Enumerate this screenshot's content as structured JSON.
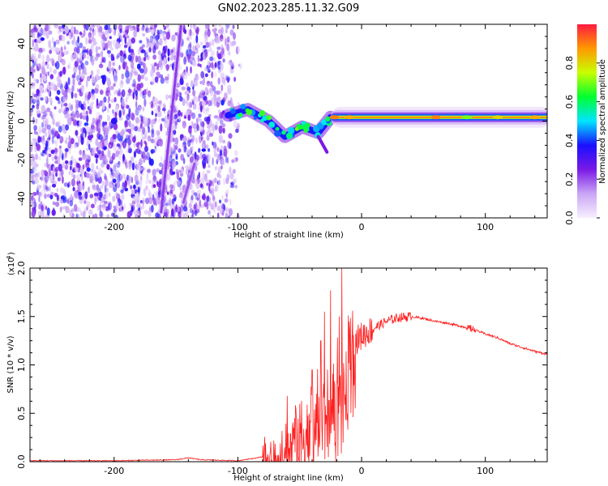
{
  "chart_data": [
    {
      "type": "heatmap",
      "title": "GN02.2023.285.11.32.G09",
      "xlabel": "Height of straight line (km)",
      "ylabel": "Frequency (Hz)",
      "xlim": [
        -268,
        150
      ],
      "ylim": [
        -50,
        50
      ],
      "x_ticks": [
        -200,
        -100,
        0,
        100
      ],
      "y_ticks": [
        -40,
        -20,
        0,
        20,
        40
      ],
      "colorbar": {
        "label": "Normalized spectral amplitude",
        "range": [
          0,
          1
        ],
        "ticks": [
          0.0,
          0.2,
          0.4,
          0.6,
          0.8
        ],
        "colors": [
          "#f8f0ff",
          "#c9a6f5",
          "#7a19e6",
          "#1a10ff",
          "#00e5ff",
          "#00ff30",
          "#c8ff00",
          "#ff9900",
          "#ff1a40"
        ]
      },
      "features": [
        {
          "name": "noise-region",
          "x_range": [
            -268,
            -95
          ],
          "y_range": [
            -50,
            50
          ],
          "level": 0.3
        },
        {
          "name": "streak-1",
          "x": [
            -162,
            -146
          ],
          "y": [
            -47,
            49
          ],
          "level": 0.22
        },
        {
          "name": "streak-2",
          "x": [
            -144,
            -135
          ],
          "y": [
            -42,
            -22
          ],
          "level": 0.2
        },
        {
          "name": "spot",
          "x": [
            -200
          ],
          "y": [
            0
          ],
          "level": 0.35
        },
        {
          "name": "transition-band",
          "x": [
            -108,
            -92,
            -75,
            -62,
            -48,
            -35,
            -25
          ],
          "y": [
            3,
            6,
            0,
            -8,
            -3,
            -6,
            2
          ],
          "level": 0.55
        },
        {
          "name": "side-streak",
          "x": [
            -35,
            -28
          ],
          "y": [
            -8,
            -16
          ],
          "level": 0.25
        },
        {
          "name": "main-band",
          "x_range": [
            -25,
            150
          ],
          "y": 2,
          "level": 0.75
        }
      ]
    },
    {
      "type": "line",
      "xlabel": "Height of straight line (km)",
      "ylabel": "SNR (10 * v/v)",
      "y_scale_label": "(x10",
      "y_scale_exp": "4",
      "xlim": [
        -268,
        150
      ],
      "ylim": [
        0,
        2.0
      ],
      "x_ticks": [
        -200,
        -100,
        0,
        100
      ],
      "y_ticks": [
        0.0,
        0.5,
        1.0,
        1.5,
        2.0
      ],
      "color": "#ff2020",
      "series": [
        {
          "name": "SNR",
          "x": [
            -268,
            -200,
            -150,
            -140,
            -130,
            -100,
            -80,
            -70,
            -65,
            -60,
            -55,
            -50,
            -45,
            -40,
            -35,
            -30,
            -25,
            -20,
            -17,
            -15,
            -12,
            -10,
            -5,
            0,
            10,
            20,
            30,
            40,
            50,
            60,
            70,
            80,
            90,
            100,
            110,
            120,
            130,
            140,
            150
          ],
          "y": [
            0.01,
            0.01,
            0.02,
            0.04,
            0.02,
            0.01,
            0.05,
            0.12,
            0.25,
            0.35,
            0.4,
            0.45,
            0.5,
            0.55,
            0.6,
            0.7,
            0.8,
            0.85,
            0.95,
            0.9,
            1.0,
            1.05,
            1.25,
            1.3,
            1.38,
            1.45,
            1.49,
            1.5,
            1.48,
            1.45,
            1.43,
            1.4,
            1.37,
            1.32,
            1.28,
            1.22,
            1.18,
            1.14,
            1.11
          ]
        }
      ],
      "spikes": [
        {
          "x": -60,
          "y": 0.68
        },
        {
          "x": -40,
          "y": 0.95
        },
        {
          "x": -33,
          "y": 1.25
        },
        {
          "x": -30,
          "y": 1.55
        },
        {
          "x": -25,
          "y": 1.77
        },
        {
          "x": -18,
          "y": 1.5
        },
        {
          "x": -16,
          "y": 2.0
        },
        {
          "x": -10,
          "y": 1.45
        }
      ]
    }
  ]
}
